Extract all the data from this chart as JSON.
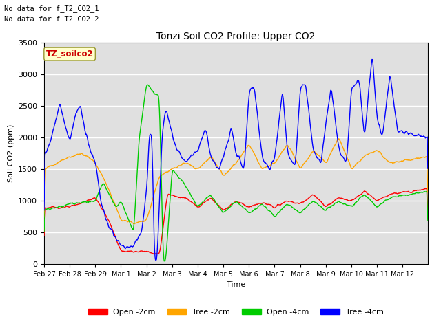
{
  "title": "Tonzi Soil CO2 Profile: Upper CO2",
  "xlabel": "Time",
  "ylabel": "Soil CO2 (ppm)",
  "annotation1": "No data for f_T2_CO2_1",
  "annotation2": "No data for f_T2_CO2_2",
  "box_label": "TZ_soilco2",
  "legend_entries": [
    "Open -2cm",
    "Tree -2cm",
    "Open -4cm",
    "Tree -4cm"
  ],
  "line_colors": [
    "#ff0000",
    "#ffa500",
    "#00cc00",
    "#0000ff"
  ],
  "ylim": [
    0,
    3500
  ],
  "bg_color": "#e0e0e0",
  "fig_bg": "#ffffff",
  "grid_color": "#ffffff"
}
